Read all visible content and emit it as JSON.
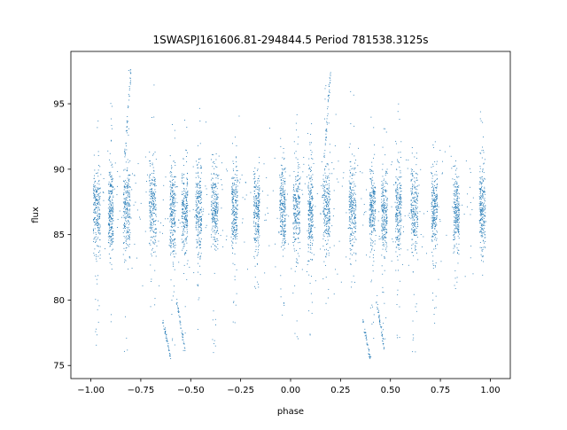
{
  "chart_data": {
    "type": "scatter",
    "title": "1SWASPJ161606.81-294844.5 Period 781538.3125s",
    "xlabel": "phase",
    "ylabel": "flux",
    "xlim": [
      -1.1,
      1.1
    ],
    "ylim": [
      74.0,
      99.0
    ],
    "xticks": [
      -1.0,
      -0.75,
      -0.5,
      -0.25,
      0.0,
      0.25,
      0.5,
      0.75,
      1.0
    ],
    "xtick_labels": [
      "−1.00",
      "−0.75",
      "−0.50",
      "−0.25",
      "0.00",
      "0.25",
      "0.50",
      "0.75",
      "1.00"
    ],
    "yticks": [
      75,
      80,
      85,
      90,
      95
    ],
    "ytick_labels": [
      "75",
      "80",
      "85",
      "90",
      "95"
    ],
    "grid": false,
    "marker_color": "#1f77b4",
    "series": [
      {
        "clusters": [
          {
            "x": -0.97,
            "width": 0.035,
            "center": 87.0,
            "spread": 1.6,
            "lo": 76.0,
            "hi": 94.0
          },
          {
            "x": -0.9,
            "width": 0.025,
            "center": 86.8,
            "spread": 1.7,
            "lo": 78.0,
            "hi": 96.0
          },
          {
            "x": -0.82,
            "width": 0.035,
            "center": 87.0,
            "spread": 1.6,
            "lo": 75.5,
            "hi": 98.0
          },
          {
            "x": -0.69,
            "width": 0.035,
            "center": 87.0,
            "spread": 1.7,
            "lo": 79.0,
            "hi": 97.0
          },
          {
            "x": -0.59,
            "width": 0.03,
            "center": 86.8,
            "spread": 1.7,
            "lo": 76.5,
            "hi": 94.0
          },
          {
            "x": -0.53,
            "width": 0.03,
            "center": 86.8,
            "spread": 1.6,
            "lo": 76.0,
            "hi": 94.0
          },
          {
            "x": -0.46,
            "width": 0.03,
            "center": 87.0,
            "spread": 1.7,
            "lo": 77.0,
            "hi": 95.0
          },
          {
            "x": -0.38,
            "width": 0.035,
            "center": 87.0,
            "spread": 1.6,
            "lo": 75.5,
            "hi": 92.0
          },
          {
            "x": -0.28,
            "width": 0.03,
            "center": 86.9,
            "spread": 1.5,
            "lo": 78.0,
            "hi": 92.5
          },
          {
            "x": -0.17,
            "width": 0.03,
            "center": 86.8,
            "spread": 1.5,
            "lo": 80.5,
            "hi": 91.0
          },
          {
            "x": -0.04,
            "width": 0.03,
            "center": 87.0,
            "spread": 1.6,
            "lo": 77.5,
            "hi": 95.0
          },
          {
            "x": 0.03,
            "width": 0.035,
            "center": 86.8,
            "spread": 1.7,
            "lo": 76.0,
            "hi": 95.5
          },
          {
            "x": 0.1,
            "width": 0.025,
            "center": 86.8,
            "spread": 1.7,
            "lo": 77.0,
            "hi": 93.5
          },
          {
            "x": 0.18,
            "width": 0.035,
            "center": 87.0,
            "spread": 1.6,
            "lo": 77.0,
            "hi": 98.0
          },
          {
            "x": 0.31,
            "width": 0.035,
            "center": 87.0,
            "spread": 1.7,
            "lo": 79.0,
            "hi": 97.0
          },
          {
            "x": 0.41,
            "width": 0.03,
            "center": 86.8,
            "spread": 1.7,
            "lo": 76.5,
            "hi": 94.0
          },
          {
            "x": 0.47,
            "width": 0.03,
            "center": 86.8,
            "spread": 1.6,
            "lo": 76.0,
            "hi": 94.0
          },
          {
            "x": 0.54,
            "width": 0.03,
            "center": 87.0,
            "spread": 1.7,
            "lo": 77.0,
            "hi": 95.0
          },
          {
            "x": 0.62,
            "width": 0.035,
            "center": 87.0,
            "spread": 1.6,
            "lo": 75.5,
            "hi": 92.0
          },
          {
            "x": 0.72,
            "width": 0.03,
            "center": 86.9,
            "spread": 1.5,
            "lo": 78.0,
            "hi": 92.5
          },
          {
            "x": 0.83,
            "width": 0.03,
            "center": 86.8,
            "spread": 1.5,
            "lo": 80.5,
            "hi": 91.0
          },
          {
            "x": 0.96,
            "width": 0.03,
            "center": 87.0,
            "spread": 1.6,
            "lo": 78.5,
            "hi": 94.5
          }
        ],
        "trails": [
          {
            "x0": -0.57,
            "y0": 80.0,
            "x1": -0.53,
            "y1": 76.2
          },
          {
            "x0": -0.64,
            "y0": 78.5,
            "x1": -0.6,
            "y1": 75.5
          },
          {
            "x0": 0.43,
            "y0": 80.0,
            "x1": 0.47,
            "y1": 76.2
          },
          {
            "x0": 0.36,
            "y0": 78.5,
            "x1": 0.4,
            "y1": 75.5
          },
          {
            "x0": -0.8,
            "y0": 97.5,
            "x1": -0.83,
            "y1": 91.0
          },
          {
            "x0": 0.2,
            "y0": 97.5,
            "x1": 0.17,
            "y1": 91.0
          }
        ]
      }
    ]
  }
}
